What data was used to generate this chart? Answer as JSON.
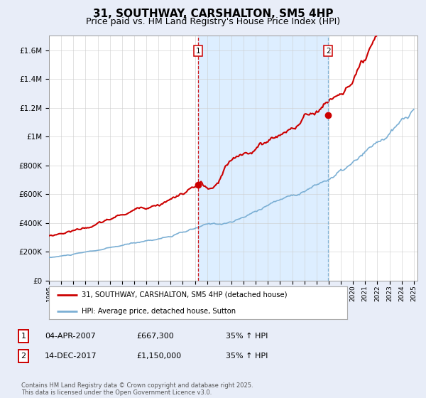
{
  "title": "31, SOUTHWAY, CARSHALTON, SM5 4HP",
  "subtitle": "Price paid vs. HM Land Registry's House Price Index (HPI)",
  "x_start_year": 1995,
  "x_end_year": 2025,
  "ylim": [
    0,
    1700000
  ],
  "yticks": [
    0,
    200000,
    400000,
    600000,
    800000,
    1000000,
    1200000,
    1400000,
    1600000
  ],
  "ytick_labels": [
    "£0",
    "£200K",
    "£400K",
    "£600K",
    "£800K",
    "£1M",
    "£1.2M",
    "£1.4M",
    "£1.6M"
  ],
  "sale1_year": 2007.25,
  "sale1_value": 667300,
  "sale1_label": "1",
  "sale1_date": "04-APR-2007",
  "sale1_hpi": "35% ↑ HPI",
  "sale2_year": 2017.95,
  "sale2_value": 1150000,
  "sale2_label": "2",
  "sale2_date": "14-DEC-2017",
  "sale2_hpi": "35% ↑ HPI",
  "red_line_color": "#cc0000",
  "blue_line_color": "#7bafd4",
  "shade_color": "#ddeeff",
  "vline1_color": "#cc0000",
  "vline2_color": "#7bafd4",
  "legend_line1": "31, SOUTHWAY, CARSHALTON, SM5 4HP (detached house)",
  "legend_line2": "HPI: Average price, detached house, Sutton",
  "footer": "Contains HM Land Registry data © Crown copyright and database right 2025.\nThis data is licensed under the Open Government Licence v3.0.",
  "background_color": "#e8edf8",
  "plot_bg_color": "#ffffff",
  "title_fontsize": 11,
  "subtitle_fontsize": 9
}
